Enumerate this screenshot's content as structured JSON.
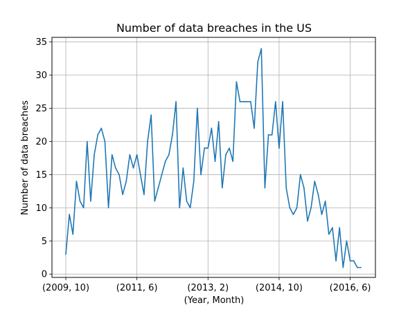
{
  "chart_data": {
    "type": "line",
    "title": "Number of data breaches in the US",
    "xlabel": "(Year, Month)",
    "ylabel": "Number of data breaches",
    "x_tick_labels": [
      "(2009, 10)",
      "(2011, 6)",
      "(2013, 2)",
      "(2014, 10)",
      "(2016, 6)"
    ],
    "x_tick_positions": [
      0,
      20,
      40,
      60,
      80
    ],
    "y_ticks": [
      0,
      5,
      10,
      15,
      20,
      25,
      30,
      35
    ],
    "ylim": [
      -0.5,
      35.7
    ],
    "xlim": [
      -3.9,
      87.1
    ],
    "grid": true,
    "series_color": "#1f77b4",
    "series": [
      {
        "values": [
          3,
          9,
          6,
          14,
          11,
          10,
          20,
          11,
          18,
          21,
          22,
          20,
          10,
          18,
          16,
          15,
          12,
          14,
          18,
          16,
          18,
          15,
          12,
          20,
          24,
          11,
          13,
          15,
          17,
          18,
          21,
          26,
          10,
          16,
          11,
          10,
          14,
          25,
          15,
          19,
          19,
          22,
          17,
          23,
          13,
          18,
          19,
          17,
          29,
          26,
          26,
          26,
          26,
          22,
          32,
          34,
          13,
          21,
          21,
          26,
          19,
          26,
          13,
          10,
          9,
          10,
          15,
          13,
          8,
          10,
          14,
          12,
          9,
          11,
          6,
          7,
          2,
          7,
          1,
          5,
          2,
          2,
          1,
          1
        ]
      }
    ]
  }
}
